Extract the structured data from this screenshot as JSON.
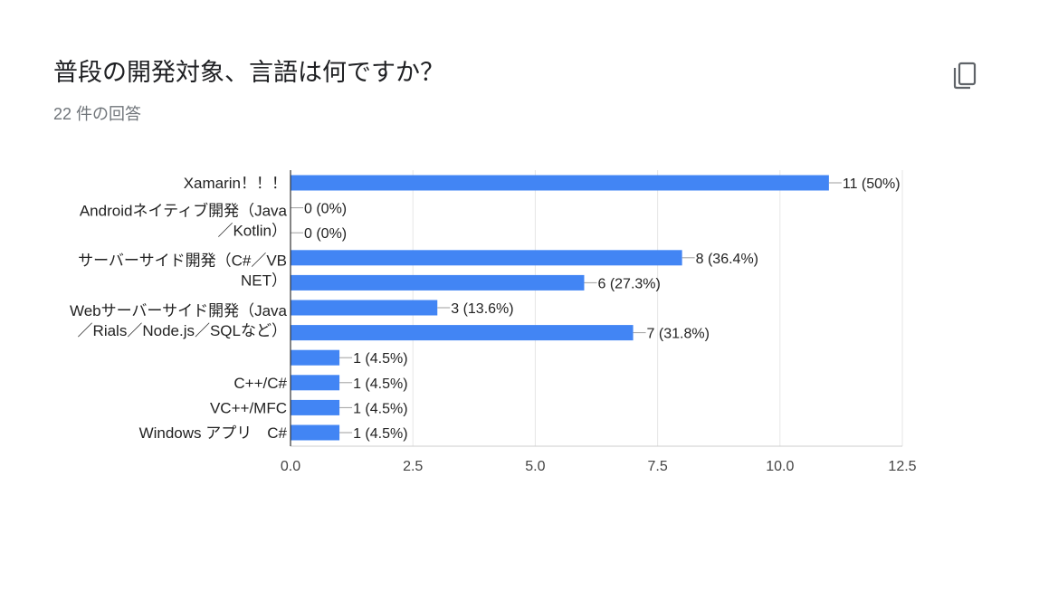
{
  "header": {
    "title": "普段の開発対象、言語は何ですか？",
    "response_count": "22 件の回答"
  },
  "icons": {
    "copy": "copy-icon"
  },
  "colors": {
    "bar": "#4285f4",
    "axis": "#333333",
    "grid": "#e6e6e6",
    "leader": "#9e9e9e"
  },
  "chart_data": {
    "type": "bar",
    "orientation": "horizontal",
    "title": "",
    "xlabel": "",
    "ylabel": "",
    "xlim": [
      0,
      12.5
    ],
    "x_ticks": [
      "0.0",
      "2.5",
      "5.0",
      "7.5",
      "10.0",
      "12.5"
    ],
    "x_tick_values": [
      0,
      2.5,
      5,
      7.5,
      10,
      12.5
    ],
    "grid": true,
    "legend": "none",
    "bars": [
      {
        "value": 11,
        "label": "11 (50%)"
      },
      {
        "value": 0,
        "label": "0 (0%)"
      },
      {
        "value": 0,
        "label": "0 (0%)"
      },
      {
        "value": 8,
        "label": "8 (36.4%)"
      },
      {
        "value": 6,
        "label": "6 (27.3%)"
      },
      {
        "value": 3,
        "label": "3 (13.6%)"
      },
      {
        "value": 7,
        "label": "7 (31.8%)"
      },
      {
        "value": 1,
        "label": "1 (4.5%)"
      },
      {
        "value": 1,
        "label": "1 (4.5%)"
      },
      {
        "value": 1,
        "label": "1 (4.5%)"
      },
      {
        "value": 1,
        "label": "1 (4.5%)"
      }
    ],
    "category_labels": [
      {
        "lines": [
          "Xamarin！！！"
        ],
        "bar_index": 0
      },
      {
        "lines": [
          "Androidネイティブ開発（Java",
          "／Kotlin）"
        ],
        "bar_index": 1.5
      },
      {
        "lines": [
          "サーバーサイド開発（C#／VB",
          "NET）"
        ],
        "bar_index": 3.5
      },
      {
        "lines": [
          "Webサーバーサイド開発（Java",
          "／Rials／Node.js／SQLなど）"
        ],
        "bar_index": 5.5
      },
      {
        "lines": [
          "C++/C#"
        ],
        "bar_index": 8
      },
      {
        "lines": [
          "VC++/MFC"
        ],
        "bar_index": 9
      },
      {
        "lines": [
          "Windows アプリ　C#"
        ],
        "bar_index": 10
      }
    ]
  }
}
